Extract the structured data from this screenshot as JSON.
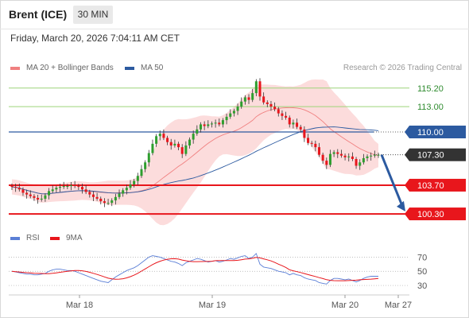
{
  "header": {
    "instrument": "Brent (ICE)",
    "interval": "30 MIN",
    "timestamp": "Friday, March 20, 2026 7:04:11 AM CET"
  },
  "legend": {
    "bb_label": "MA 20 + Bollinger Bands",
    "bb_color": "#f08080",
    "ma50_label": "MA 50",
    "ma50_color": "#2c5aa0",
    "rsi_label": "RSI",
    "rsi_color": "#5b7fd6",
    "rsi_ma_label": "9MA",
    "rsi_ma_color": "#e8161c"
  },
  "credit": "Research © 2026 Trading Central",
  "colors": {
    "up": "#2e9e2e",
    "down": "#e8161c",
    "support": "#e8161c",
    "resistance": "#9ed47a",
    "pivot": "#2c5aa0",
    "arrow": "#2c5aa0",
    "band": "#fbd6d6"
  },
  "chart_data": [
    {
      "type": "candlestick",
      "x_tick_labels": [
        "Mar 18",
        "Mar 19",
        "Mar 20",
        "Mar 27"
      ],
      "ylim": [
        98.8,
        116.4
      ],
      "levels": [
        {
          "value": 115.2,
          "label": "115.20",
          "kind": "resistance"
        },
        {
          "value": 113.0,
          "label": "113.00",
          "kind": "resistance"
        },
        {
          "value": 110.0,
          "label": "110.00",
          "kind": "pivot"
        },
        {
          "value": 107.3,
          "label": "107.30",
          "kind": "last"
        },
        {
          "value": 103.7,
          "label": "103.70",
          "kind": "support"
        },
        {
          "value": 100.3,
          "label": "100.30",
          "kind": "support"
        }
      ],
      "projection": {
        "from": 107.3,
        "to": 100.6
      },
      "close": [
        103.5,
        103.4,
        103.2,
        102.8,
        102.6,
        102.4,
        102.2,
        102.0,
        102.1,
        102.5,
        103.0,
        103.2,
        103.4,
        103.5,
        103.6,
        103.6,
        103.7,
        103.6,
        103.5,
        103.2,
        102.9,
        102.6,
        102.3,
        102.1,
        101.8,
        101.6,
        101.6,
        101.9,
        102.3,
        102.7,
        103.1,
        103.4,
        103.8,
        104.2,
        104.8,
        105.6,
        106.4,
        107.5,
        108.6,
        109.5,
        109.8,
        109.3,
        108.8,
        108.4,
        108.6,
        108.2,
        107.4,
        108.4,
        109.1,
        109.8,
        110.3,
        110.9,
        110.7,
        110.9,
        111.0,
        111.1,
        110.9,
        111.4,
        111.8,
        112.2,
        112.5,
        113.0,
        113.6,
        114.1,
        113.8,
        114.6,
        116.0,
        114.2,
        113.5,
        113.3,
        113.0,
        112.7,
        112.2,
        111.9,
        111.7,
        110.9,
        111.1,
        110.6,
        110.3,
        109.3,
        108.7,
        108.6,
        108.2,
        107.3,
        106.6,
        106.1,
        107.4,
        107.6,
        107.4,
        107.2,
        107.0,
        107.1,
        106.8,
        106.0,
        106.4,
        106.9,
        107.1,
        107.2,
        107.3,
        107.3
      ],
      "rsi": [
        50,
        49,
        48,
        47,
        46,
        46,
        45,
        45,
        46,
        47,
        50,
        52,
        53,
        53,
        52,
        51,
        51,
        50,
        48,
        46,
        44,
        42,
        40,
        38,
        36,
        35,
        34,
        38,
        42,
        45,
        48,
        51,
        53,
        55,
        58,
        62,
        66,
        70,
        72,
        71,
        70,
        68,
        66,
        64,
        63,
        61,
        58,
        62,
        64,
        66,
        68,
        67,
        65,
        63,
        64,
        65,
        63,
        64,
        66,
        68,
        67,
        69,
        71,
        72,
        68,
        70,
        75,
        60,
        56,
        55,
        54,
        52,
        50,
        49,
        48,
        45,
        47,
        45,
        44,
        41,
        39,
        38,
        37,
        34,
        33,
        32,
        37,
        40,
        40,
        39,
        38,
        39,
        37,
        35,
        37,
        40,
        42,
        43,
        43,
        43
      ],
      "rsi_ticks": [
        70,
        50,
        30
      ]
    }
  ]
}
